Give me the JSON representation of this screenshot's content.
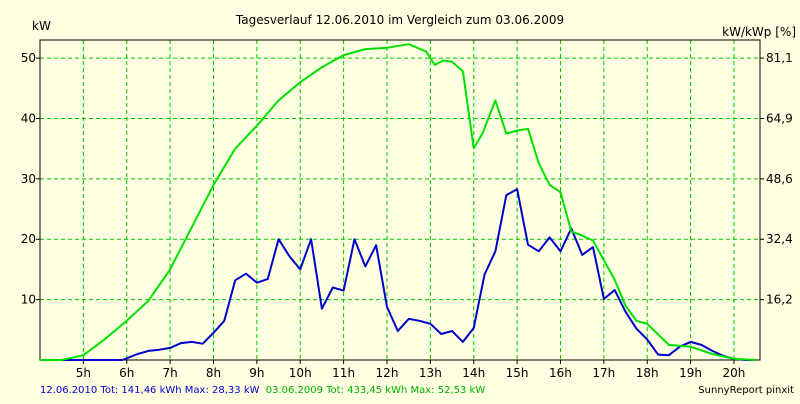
{
  "colors": {
    "background": "#ffffe1",
    "grid": "#00c800",
    "series_2010": "#0000cc",
    "series_2009": "#00e000",
    "axis": "#000000",
    "footer_blue": "#0000cc",
    "footer_green": "#00b000"
  },
  "chart_data": {
    "type": "line",
    "title": "Tagesverlauf 12.06.2010 im Vergleich zum 03.06.2009",
    "ylabel_left": "kW",
    "ylabel_right": "kW/kWp [%]",
    "xlim": [
      4.0,
      20.6
    ],
    "ylim": [
      0,
      53
    ],
    "grid": true,
    "x_ticks": [
      {
        "x": 5,
        "label": "5h"
      },
      {
        "x": 6,
        "label": "6h"
      },
      {
        "x": 7,
        "label": "7h"
      },
      {
        "x": 8,
        "label": "8h"
      },
      {
        "x": 9,
        "label": "9h"
      },
      {
        "x": 10,
        "label": "10h"
      },
      {
        "x": 11,
        "label": "11h"
      },
      {
        "x": 12,
        "label": "12h"
      },
      {
        "x": 13,
        "label": "13h"
      },
      {
        "x": 14,
        "label": "14h"
      },
      {
        "x": 15,
        "label": "15h"
      },
      {
        "x": 16,
        "label": "16h"
      },
      {
        "x": 17,
        "label": "17h"
      },
      {
        "x": 18,
        "label": "18h"
      },
      {
        "x": 19,
        "label": "19h"
      },
      {
        "x": 20,
        "label": "20h"
      }
    ],
    "y_ticks_left": [
      {
        "y": 10,
        "label": "10"
      },
      {
        "y": 20,
        "label": "20"
      },
      {
        "y": 30,
        "label": "30"
      },
      {
        "y": 40,
        "label": "40"
      },
      {
        "y": 50,
        "label": "50"
      }
    ],
    "y_ticks_right": [
      {
        "y": 10,
        "label": "16,2"
      },
      {
        "y": 20,
        "label": "32,4"
      },
      {
        "y": 30,
        "label": "48,6"
      },
      {
        "y": 40,
        "label": "64,9"
      },
      {
        "y": 50,
        "label": "81,1"
      }
    ],
    "series": [
      {
        "key": "series_2010",
        "x": [
          4.0,
          4.5,
          5.0,
          5.5,
          5.9,
          6.25,
          6.5,
          6.75,
          7.0,
          7.25,
          7.5,
          7.75,
          8.0,
          8.25,
          8.5,
          8.75,
          9.0,
          9.25,
          9.5,
          9.75,
          10.0,
          10.25,
          10.5,
          10.75,
          11.0,
          11.25,
          11.5,
          11.75,
          12.0,
          12.25,
          12.5,
          12.75,
          13.0,
          13.25,
          13.5,
          13.75,
          14.0,
          14.25,
          14.5,
          14.75,
          15.0,
          15.25,
          15.5,
          15.75,
          16.0,
          16.25,
          16.5,
          16.75,
          17.0,
          17.25,
          17.5,
          17.75,
          18.0,
          18.25,
          18.5,
          18.75,
          19.0,
          19.25,
          19.5,
          19.75,
          20.0,
          20.25,
          20.5
        ],
        "y": [
          0,
          0,
          0,
          0,
          0,
          1,
          1.5,
          1.7,
          2,
          2.8,
          3,
          2.7,
          4.5,
          6.5,
          13.2,
          14.3,
          12.8,
          13.4,
          20,
          17.2,
          15,
          20,
          8.5,
          12,
          11.5,
          20,
          15.5,
          19,
          8.8,
          4.8,
          6.8,
          6.5,
          6,
          4.3,
          4.8,
          3,
          5.3,
          14.2,
          18,
          27.3,
          28.3,
          19.1,
          18,
          20.3,
          18,
          21.8,
          17.4,
          18.7,
          10.1,
          11.6,
          8,
          5.2,
          3.4,
          0.9,
          0.8,
          2.2,
          3,
          2.5,
          1.5,
          0.7,
          0.2,
          0,
          0
        ]
      },
      {
        "key": "series_2009",
        "x": [
          4.0,
          4.5,
          5.0,
          5.5,
          6.0,
          6.5,
          7.0,
          7.5,
          8.0,
          8.5,
          9.0,
          9.5,
          10.0,
          10.5,
          11.0,
          11.5,
          12.0,
          12.5,
          12.9,
          13.1,
          13.3,
          13.5,
          13.75,
          14.0,
          14.2,
          14.5,
          14.75,
          15.0,
          15.25,
          15.5,
          15.75,
          16.0,
          16.25,
          16.5,
          16.75,
          17.0,
          17.25,
          17.5,
          17.75,
          18.0,
          18.5,
          19.0,
          19.5,
          20.0,
          20.5
        ],
        "y": [
          0,
          0,
          0.8,
          3.5,
          6.5,
          9.8,
          15,
          22,
          29,
          35,
          38.8,
          43,
          46,
          48.5,
          50.5,
          51.5,
          51.7,
          52.3,
          51.1,
          48.9,
          49.6,
          49.4,
          47.8,
          35.1,
          37.5,
          43,
          37.5,
          38,
          38.3,
          32.6,
          29,
          27.8,
          21.3,
          20.6,
          19.8,
          16.5,
          13.3,
          9,
          6.5,
          6,
          2.5,
          2.2,
          1,
          0.2,
          0
        ]
      }
    ]
  },
  "footer": {
    "legend_2010": "12.06.2010 Tot: 141,46 kWh Max: 28,33 kW",
    "legend_2009": "03.06.2009 Tot: 433,45 kWh Max: 52,53 kW",
    "credit": "SunnyReport pinxit"
  }
}
